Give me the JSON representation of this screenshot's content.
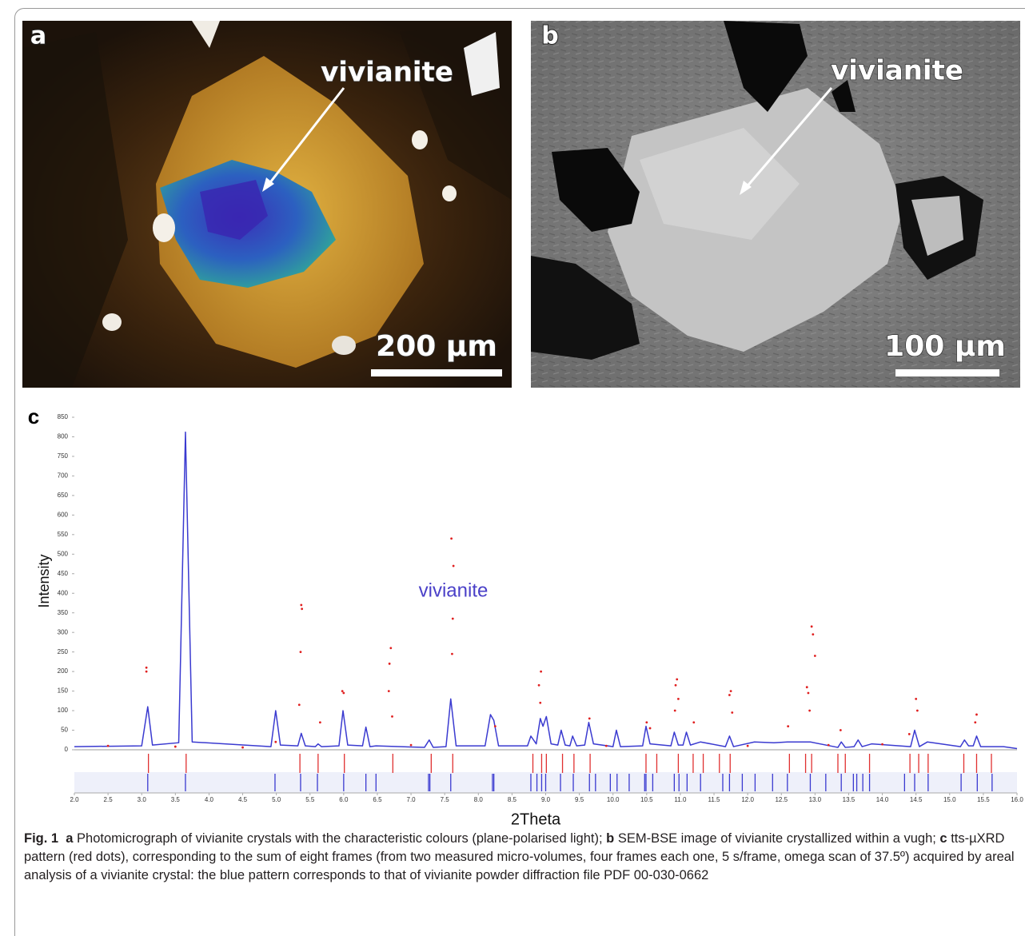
{
  "panels": [
    {
      "label": "a",
      "annotation": "vivianite",
      "scale_bar": "200 µm"
    },
    {
      "label": "b",
      "annotation": "vivianite",
      "scale_bar": "100 µm"
    }
  ],
  "chart_data": {
    "type": "line",
    "panel_label": "c",
    "annotation": "vivianite",
    "x_label": "2Theta",
    "y_label": "Intensity",
    "xlim": [
      2.0,
      16.0
    ],
    "ylim": [
      0,
      850
    ],
    "xticks": [
      {
        "value": 2,
        "label": "2.0"
      },
      2.5,
      {
        "value": 3,
        "label": "3.0"
      },
      3.5,
      {
        "value": 4,
        "label": "4.0"
      },
      4.5,
      {
        "value": 5,
        "label": "5.0"
      },
      5.5,
      {
        "value": 6,
        "label": "6.0"
      },
      6.5,
      {
        "value": 7,
        "label": "7.0"
      },
      7.5,
      {
        "value": 8,
        "label": "8.0"
      },
      8.5,
      {
        "value": 9,
        "label": "9.0"
      },
      9.5,
      {
        "value": 10,
        "label": "10.0"
      },
      10.5,
      {
        "value": 11,
        "label": "11.0"
      },
      11.5,
      {
        "value": 12,
        "label": "12.0"
      },
      12.5,
      {
        "value": 13,
        "label": "13.0"
      },
      13.5,
      {
        "value": 14,
        "label": "14.0"
      },
      14.5,
      {
        "value": 15,
        "label": "15.0"
      },
      15.5,
      {
        "value": 16,
        "label": "16.0"
      }
    ],
    "yticks": [
      0,
      50,
      100,
      150,
      200,
      250,
      300,
      350,
      400,
      450,
      500,
      550,
      600,
      650,
      700,
      750,
      800,
      850
    ],
    "series": [
      {
        "type": "line",
        "color": "#3a3ad0",
        "x": [
          2.0,
          3.0,
          3.09,
          3.16,
          3.55,
          3.65,
          3.75,
          4.92,
          4.99,
          5.06,
          5.32,
          5.37,
          5.43,
          5.58,
          5.62,
          5.67,
          5.93,
          5.99,
          6.06,
          6.28,
          6.33,
          6.39,
          6.48,
          7.2,
          7.27,
          7.33,
          7.52,
          7.59,
          7.67,
          8.1,
          8.18,
          8.23,
          8.3,
          8.73,
          8.78,
          8.86,
          8.92,
          8.96,
          9.01,
          9.08,
          9.18,
          9.23,
          9.29,
          9.36,
          9.4,
          9.46,
          9.58,
          9.64,
          9.71,
          10.0,
          10.05,
          10.11,
          10.44,
          10.49,
          10.55,
          10.86,
          10.91,
          10.97,
          11.04,
          11.09,
          11.15,
          11.3,
          11.67,
          11.73,
          11.79,
          12.1,
          12.39,
          12.59,
          12.93,
          13.34,
          13.39,
          13.45,
          13.58,
          13.64,
          13.7,
          13.84,
          14.42,
          14.48,
          14.55,
          14.67,
          15.16,
          15.22,
          15.28,
          15.35,
          15.4,
          15.46,
          15.8,
          16.0
        ],
        "values": [
          8,
          10,
          110,
          12,
          18,
          812,
          20,
          8,
          100,
          12,
          10,
          42,
          10,
          8,
          15,
          8,
          10,
          100,
          12,
          10,
          58,
          8,
          10,
          6,
          25,
          6,
          8,
          130,
          10,
          10,
          90,
          75,
          10,
          10,
          35,
          15,
          80,
          60,
          85,
          15,
          12,
          50,
          12,
          10,
          35,
          10,
          12,
          70,
          15,
          8,
          50,
          8,
          10,
          60,
          15,
          10,
          45,
          12,
          12,
          45,
          12,
          20,
          8,
          35,
          8,
          20,
          18,
          20,
          20,
          6,
          20,
          6,
          8,
          25,
          8,
          15,
          8,
          50,
          8,
          20,
          8,
          25,
          10,
          10,
          35,
          8,
          8,
          3
        ]
      },
      {
        "type": "scatter",
        "color": "#e02020",
        "x": [
          3.07,
          3.07,
          5.37,
          5.38,
          5.36,
          5.34,
          5.65,
          5.98,
          6.0,
          6.7,
          6.68,
          6.67,
          6.72,
          7.6,
          7.63,
          7.62,
          7.61,
          8.93,
          8.9,
          8.92,
          9.65,
          10.5,
          10.55,
          10.95,
          10.93,
          10.97,
          10.92,
          11.2,
          11.75,
          11.73,
          11.77,
          12.6,
          12.88,
          12.9,
          12.92,
          12.95,
          12.97,
          13.0,
          13.38,
          14.5,
          14.52,
          15.4,
          15.38,
          14.4,
          8.25,
          4.99,
          2.5,
          3.5,
          4.5,
          7.0,
          9.9,
          12.0,
          13.2,
          14.0
        ],
        "values": [
          210,
          200,
          370,
          360,
          250,
          115,
          70,
          150,
          145,
          260,
          220,
          150,
          85,
          540,
          470,
          335,
          245,
          200,
          165,
          120,
          80,
          70,
          55,
          180,
          165,
          130,
          100,
          70,
          150,
          140,
          95,
          60,
          160,
          145,
          100,
          315,
          295,
          240,
          50,
          130,
          100,
          90,
          70,
          40,
          60,
          20,
          10,
          8,
          6,
          12,
          10,
          10,
          12,
          14
        ]
      }
    ],
    "reference_ticks": [
      {
        "color": "#e03030",
        "x": [
          3.1,
          3.66,
          5.35,
          5.62,
          6.01,
          6.73,
          7.3,
          7.62,
          8.81,
          8.94,
          9.01,
          9.25,
          9.42,
          9.66,
          10.49,
          10.65,
          10.97,
          11.19,
          11.34,
          11.58,
          11.74,
          12.62,
          12.86,
          12.95,
          13.34,
          13.45,
          13.81,
          14.41,
          14.54,
          14.68,
          15.21,
          15.4,
          15.62
        ]
      },
      {
        "color": "#3a3ad0",
        "x": [
          3.09,
          3.65,
          4.98,
          5.36,
          5.61,
          6.0,
          6.33,
          6.48,
          7.26,
          7.28,
          7.59,
          8.21,
          8.23,
          8.78,
          8.87,
          8.94,
          9.0,
          9.22,
          9.41,
          9.65,
          9.74,
          9.96,
          10.06,
          10.24,
          10.47,
          10.49,
          10.59,
          10.91,
          10.98,
          11.1,
          11.3,
          11.63,
          11.73,
          11.92,
          12.11,
          12.37,
          12.59,
          12.93,
          13.16,
          13.39,
          13.57,
          13.62,
          13.71,
          13.81,
          14.33,
          14.48,
          14.68,
          15.17,
          15.41,
          15.63
        ]
      }
    ]
  },
  "caption": {
    "label": "Fig. 1",
    "runs": [
      [
        "a",
        " Photomicrograph of vivianite crystals with the characteristic colours (plane-polarised light); "
      ],
      [
        "b",
        " SEM-BSE image of vivianite crystallized within a vugh; "
      ],
      [
        "c",
        " tts-µXRD pattern (red dots), corresponding to the sum of eight frames (from two measured micro-volumes, four frames each one, 5 s/frame, omega scan of 37.5º) acquired by areal analysis of a vivianite crystal: the blue pattern corresponds to that of vivianite powder diffraction file PDF 00-030-0662"
      ]
    ]
  }
}
